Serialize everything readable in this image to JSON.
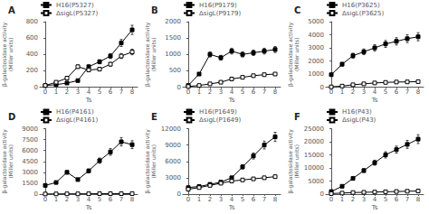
{
  "chart_data": [
    {
      "type": "line",
      "title": "A",
      "xlabel": "Ts",
      "ylabel": "β-galactosidase activity\n(Miller units)",
      "x": [
        0,
        1,
        2,
        3,
        4,
        5,
        6,
        7,
        8
      ],
      "xlim": [
        -0.5,
        8.5
      ],
      "xticks": [
        0,
        1,
        2,
        3,
        4,
        5,
        6,
        7,
        8
      ],
      "ylim": [
        0,
        800
      ],
      "yticks": [
        0,
        200,
        400,
        600,
        800
      ],
      "grid": false,
      "legend": "upper left",
      "series": [
        {
          "name": "H16(P5327)",
          "color": "#000000",
          "marker": "square",
          "line_style": "solid",
          "values": [
            20,
            30,
            50,
            80,
            250,
            310,
            380,
            540,
            700
          ],
          "errors": [
            1.6,
            2.4,
            4,
            6.4,
            20,
            24.8,
            30.4,
            43.2,
            56
          ]
        },
        {
          "name": "ΔsigL(P5327)",
          "color": "#000000",
          "marker": "open_square",
          "line_style": "solid",
          "values": [
            20,
            60,
            110,
            250,
            210,
            220,
            280,
            380,
            430
          ],
          "errors": [
            1.6,
            4.8,
            8.8,
            20,
            16.8,
            17.6,
            22.4,
            30.4,
            34.4
          ]
        }
      ]
    },
    {
      "type": "line",
      "title": "B",
      "xlabel": "Ts",
      "ylabel": "β-galactosidase activity\n(Miller units)",
      "x": [
        0,
        1,
        2,
        3,
        4,
        5,
        6,
        7,
        8
      ],
      "xlim": [
        -0.5,
        8.5
      ],
      "xticks": [
        0,
        1,
        2,
        3,
        4,
        5,
        6,
        7,
        8
      ],
      "ylim": [
        0,
        2000
      ],
      "yticks": [
        0,
        500,
        1000,
        1500,
        2000
      ],
      "grid": false,
      "legend": "upper left",
      "series": [
        {
          "name": "H16(P9179)",
          "color": "#000000",
          "marker": "square",
          "line_style": "solid",
          "values": [
            50,
            400,
            1000,
            900,
            1100,
            1000,
            1050,
            1100,
            1150
          ],
          "errors": [
            4,
            32,
            80,
            72,
            88,
            80,
            84,
            88,
            92
          ]
        },
        {
          "name": "ΔsigL(P9179)",
          "color": "#000000",
          "marker": "open_square",
          "line_style": "solid",
          "values": [
            20,
            50,
            100,
            150,
            250,
            300,
            350,
            380,
            400
          ],
          "errors": [
            1.6,
            4,
            8,
            12,
            20,
            24,
            28,
            30.4,
            32
          ]
        }
      ]
    },
    {
      "type": "line",
      "title": "C",
      "xlabel": "Ts",
      "ylabel": "β-galactosidase activity\n(Miller units)",
      "x": [
        0,
        1,
        2,
        3,
        4,
        5,
        6,
        7,
        8
      ],
      "xlim": [
        -0.5,
        8.5
      ],
      "xticks": [
        0,
        1,
        2,
        3,
        4,
        5,
        6,
        7,
        8
      ],
      "ylim": [
        0,
        5000
      ],
      "yticks": [
        0,
        1000,
        2000,
        3000,
        4000,
        5000
      ],
      "grid": false,
      "legend": "upper left",
      "series": [
        {
          "name": "H16(P3625)",
          "color": "#000000",
          "marker": "square",
          "line_style": "solid",
          "values": [
            950,
            1750,
            2400,
            2700,
            3000,
            3300,
            3500,
            3700,
            3850
          ],
          "errors": [
            76,
            140,
            192,
            216,
            240,
            264,
            280,
            296,
            308
          ]
        },
        {
          "name": "ΔsigL(P3625)",
          "color": "#000000",
          "marker": "open_square",
          "line_style": "solid",
          "values": [
            20,
            80,
            180,
            250,
            320,
            360,
            390,
            400,
            420
          ],
          "errors": [
            1.6,
            6.4,
            14.4,
            20,
            25.6,
            28.8,
            31.2,
            32,
            33.6
          ]
        }
      ]
    },
    {
      "type": "line",
      "title": "D",
      "xlabel": "Ts",
      "ylabel": "β-galactosidase activity\n(Miller units)",
      "x": [
        0,
        1,
        2,
        3,
        4,
        5,
        6,
        7,
        8
      ],
      "xlim": [
        -0.5,
        8.5
      ],
      "xticks": [
        0,
        1,
        2,
        3,
        4,
        5,
        6,
        7,
        8
      ],
      "ylim": [
        0,
        9000
      ],
      "yticks": [
        0,
        1500,
        3000,
        4500,
        6000,
        7500,
        9000
      ],
      "grid": false,
      "legend": "upper left",
      "series": [
        {
          "name": "H16(P4161)",
          "color": "#000000",
          "marker": "square",
          "line_style": "solid",
          "values": [
            1200,
            1600,
            3000,
            2000,
            3200,
            4600,
            5800,
            7200,
            6800
          ],
          "errors": [
            96,
            128,
            240,
            160,
            256,
            368,
            464,
            576,
            544
          ]
        },
        {
          "name": "ΔsigL(P4161)",
          "color": "#000000",
          "marker": "open_square",
          "line_style": "solid",
          "values": [
            20,
            30,
            40,
            40,
            50,
            60,
            60,
            60,
            70
          ],
          "errors": [
            1.6,
            2.4,
            3.2,
            3.2,
            4,
            4.8,
            4.8,
            4.8,
            5.6
          ]
        }
      ]
    },
    {
      "type": "line",
      "title": "E",
      "xlabel": "Ts",
      "ylabel": "β-galactosidase activity\n(Miller units)",
      "x": [
        0,
        1,
        2,
        3,
        4,
        5,
        6,
        7,
        8
      ],
      "xlim": [
        -0.5,
        8.5
      ],
      "xticks": [
        0,
        1,
        2,
        3,
        4,
        5,
        6,
        7,
        8
      ],
      "ylim": [
        0,
        12000
      ],
      "yticks": [
        0,
        3000,
        6000,
        9000,
        12000
      ],
      "grid": false,
      "legend": "upper left",
      "series": [
        {
          "name": "H16(P1649)",
          "color": "#000000",
          "marker": "square",
          "line_style": "solid",
          "values": [
            1200,
            1400,
            1800,
            2200,
            3000,
            5000,
            7000,
            9000,
            10500
          ],
          "errors": [
            96,
            112,
            144,
            176,
            240,
            400,
            560,
            720,
            840
          ]
        },
        {
          "name": "ΔsigL(P1649)",
          "color": "#000000",
          "marker": "open_square",
          "line_style": "solid",
          "values": [
            900,
            1200,
            1600,
            2000,
            2400,
            2600,
            2800,
            3000,
            3200
          ],
          "errors": [
            72,
            96,
            128,
            160,
            192,
            208,
            224,
            240,
            256
          ]
        }
      ]
    },
    {
      "type": "line",
      "title": "F",
      "xlabel": "Ts",
      "ylabel": "β-galactosidase activity\n(Miller units)",
      "x": [
        0,
        1,
        2,
        3,
        4,
        5,
        6,
        7,
        8
      ],
      "xlim": [
        -0.5,
        8.5
      ],
      "xticks": [
        0,
        1,
        2,
        3,
        4,
        5,
        6,
        7,
        8
      ],
      "ylim": [
        0,
        25000
      ],
      "yticks": [
        0,
        5000,
        10000,
        15000,
        20000,
        25000
      ],
      "grid": false,
      "legend": "upper left",
      "series": [
        {
          "name": "H16(P43)",
          "color": "#000000",
          "marker": "square",
          "line_style": "solid",
          "values": [
            1000,
            3000,
            6000,
            9000,
            12000,
            15000,
            17000,
            19000,
            21000
          ],
          "errors": [
            80,
            240,
            480,
            720,
            960,
            1200,
            1360,
            1520,
            1680
          ]
        },
        {
          "name": "ΔsigL(P43)",
          "color": "#000000",
          "marker": "open_square",
          "line_style": "solid",
          "values": [
            200,
            400,
            600,
            700,
            800,
            900,
            1000,
            1100,
            1200
          ],
          "errors": [
            16,
            32,
            48,
            56,
            64,
            72,
            80,
            88,
            96
          ]
        }
      ]
    }
  ]
}
